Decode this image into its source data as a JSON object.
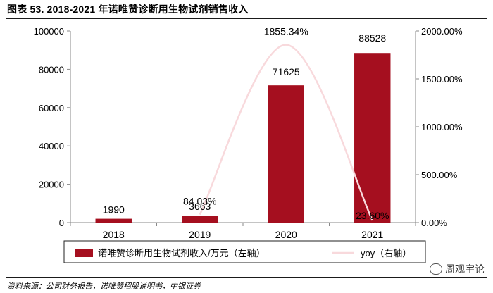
{
  "header": {
    "title": "图表 53. 2018-2021 年诺唯赞诊断用生物试剂销售收入"
  },
  "footer": {
    "source": "资料来源：公司财务报告，诺唯赞招股说明书，中银证券"
  },
  "watermark": {
    "text": "周观宇论"
  },
  "colors": {
    "bar": "#A50F1F",
    "line": "#F8D9DC"
  },
  "chart_data": {
    "type": "bar",
    "title": "2018-2021 年诺唯赞诊断用生物试剂销售收入",
    "categories": [
      "2018",
      "2019",
      "2020",
      "2021"
    ],
    "series": [
      {
        "name": "诺唯赞诊断用生物试剂收入/万元（左轴）",
        "type": "bar",
        "axis": "left",
        "values": [
          1990,
          3663,
          71625,
          88528
        ],
        "labels": [
          "1990",
          "3663",
          "71625",
          "88528"
        ]
      },
      {
        "name": "yoy（右轴）",
        "type": "line",
        "axis": "right",
        "values": [
          null,
          84.03,
          1855.34,
          23.6
        ],
        "labels": [
          "",
          "84.03%",
          "1855.34%",
          "23.60%"
        ]
      }
    ],
    "y_left": {
      "min": 0,
      "max": 100000,
      "ticks": [
        "0",
        "20000",
        "40000",
        "60000",
        "80000",
        "100000"
      ]
    },
    "y_right": {
      "min": 0,
      "max": 2000,
      "ticks": [
        "0.00%",
        "500.00%",
        "1000.00%",
        "1500.00%",
        "2000.00%"
      ]
    },
    "legend": {
      "position": "bottom"
    }
  }
}
